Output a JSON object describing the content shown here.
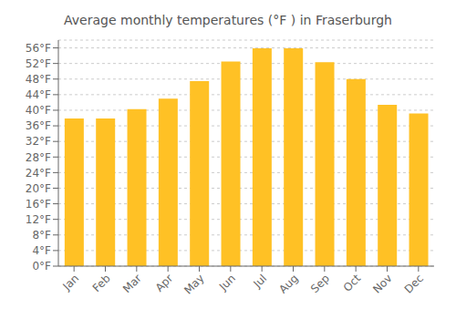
{
  "chart_data": {
    "type": "bar",
    "title": "Average monthly temperatures (°F ) in Fraserburgh",
    "categories": [
      "Jan",
      "Feb",
      "Mar",
      "Apr",
      "May",
      "Jun",
      "Jul",
      "Aug",
      "Sep",
      "Oct",
      "Nov",
      "Dec"
    ],
    "values": [
      37.9,
      37.9,
      40.3,
      43.0,
      47.5,
      52.5,
      55.9,
      55.9,
      52.3,
      48.0,
      41.4,
      39.2
    ],
    "color": "#FFC125",
    "ylim": [
      0,
      58
    ],
    "yticks": [
      {
        "value": 0,
        "label": "0°F"
      },
      {
        "value": 4,
        "label": "4°F"
      },
      {
        "value": 8,
        "label": "8°F"
      },
      {
        "value": 12,
        "label": "12°F"
      },
      {
        "value": 16,
        "label": "16°F"
      },
      {
        "value": 20,
        "label": "20°F"
      },
      {
        "value": 24,
        "label": "24°F"
      },
      {
        "value": 28,
        "label": "28°F"
      },
      {
        "value": 32,
        "label": "32°F"
      },
      {
        "value": 36,
        "label": "36°F"
      },
      {
        "value": 40,
        "label": "40°F"
      },
      {
        "value": 44,
        "label": "44°F"
      },
      {
        "value": 48,
        "label": "48°F"
      },
      {
        "value": 52,
        "label": "52°F"
      },
      {
        "value": 56,
        "label": "56°F"
      }
    ],
    "grid": true
  }
}
